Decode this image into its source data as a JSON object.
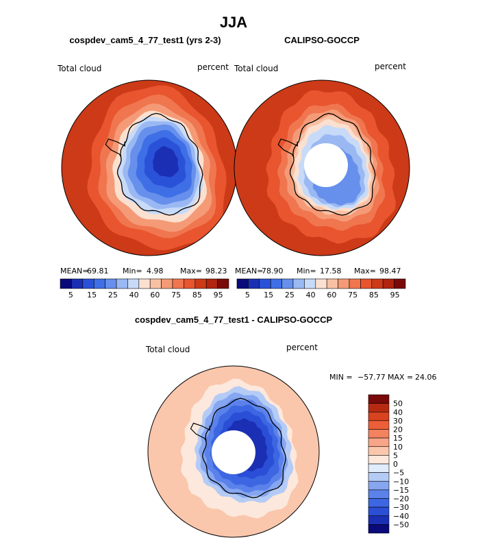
{
  "title": "JJA",
  "colors": {
    "abs_scale": [
      "#0a0a7a",
      "#1b2fb4",
      "#2a52d8",
      "#3f6fe6",
      "#6690ec",
      "#9ab8f2",
      "#c7daf8",
      "#fbe0d0",
      "#f9c0a4",
      "#f59a76",
      "#f07650",
      "#e8552e",
      "#cc3a18",
      "#b02410",
      "#7a0a0a"
    ],
    "diff_scale": [
      "#0a0a7a",
      "#1b2fb4",
      "#2a4fd6",
      "#3d66e2",
      "#5a82ea",
      "#86a6f0",
      "#b4cbf6",
      "#e0ecfb",
      "#fce8dc",
      "#fac7ac",
      "#f7a487",
      "#f3825f",
      "#ed5f38",
      "#d9431f",
      "#b72a12",
      "#7a0a0a"
    ],
    "land": "#000000",
    "missing": "#ffffff"
  },
  "chart_data": [
    {
      "type": "heatmap",
      "title": "cospdev_cam5_4_77_test1 (yrs 2-3)",
      "variable": "Total cloud",
      "units": "percent",
      "projection": "south-polar stereographic",
      "stats": {
        "mean_label": "MEAN=",
        "mean": "69.81",
        "min_label": "Min=",
        "min": "4.98",
        "max_label": "Max=",
        "max": "98.23"
      },
      "colorbar": {
        "orientation": "horizontal",
        "tick_labels": [
          "5",
          "15",
          "25",
          "40",
          "60",
          "75",
          "85",
          "95"
        ]
      },
      "levels": [
        5,
        10,
        15,
        20,
        25,
        30,
        40,
        50,
        60,
        65,
        70,
        75,
        80,
        85,
        90,
        95
      ]
    },
    {
      "type": "heatmap",
      "title": "CALIPSO-GOCCP",
      "variable": "Total cloud",
      "units": "percent",
      "projection": "south-polar stereographic",
      "stats": {
        "mean_label": "MEAN=",
        "mean": "78.90",
        "min_label": "Min=",
        "min": "17.58",
        "max_label": "Max=",
        "max": "98.47"
      },
      "colorbar": {
        "orientation": "horizontal",
        "tick_labels": [
          "5",
          "15",
          "25",
          "40",
          "60",
          "75",
          "85",
          "95"
        ]
      },
      "levels": [
        5,
        10,
        15,
        20,
        25,
        30,
        40,
        50,
        60,
        65,
        70,
        75,
        80,
        85,
        90,
        95
      ]
    },
    {
      "type": "heatmap",
      "title": "cospdev_cam5_4_77_test1 - CALIPSO-GOCCP",
      "variable": "Total cloud",
      "units": "percent",
      "projection": "south-polar stereographic",
      "stats": {
        "min_label": "MIN =",
        "min": "−57.77",
        "max_label": "MAX =",
        "max": "24.06"
      },
      "colorbar": {
        "orientation": "vertical",
        "tick_labels": [
          "50",
          "40",
          "30",
          "20",
          "15",
          "10",
          "5",
          "0",
          "−5",
          "−10",
          "−15",
          "−20",
          "−30",
          "−40",
          "−50"
        ]
      },
      "levels": [
        -50,
        -40,
        -30,
        -20,
        -15,
        -10,
        -5,
        0,
        5,
        10,
        15,
        20,
        30,
        40,
        50
      ]
    }
  ]
}
